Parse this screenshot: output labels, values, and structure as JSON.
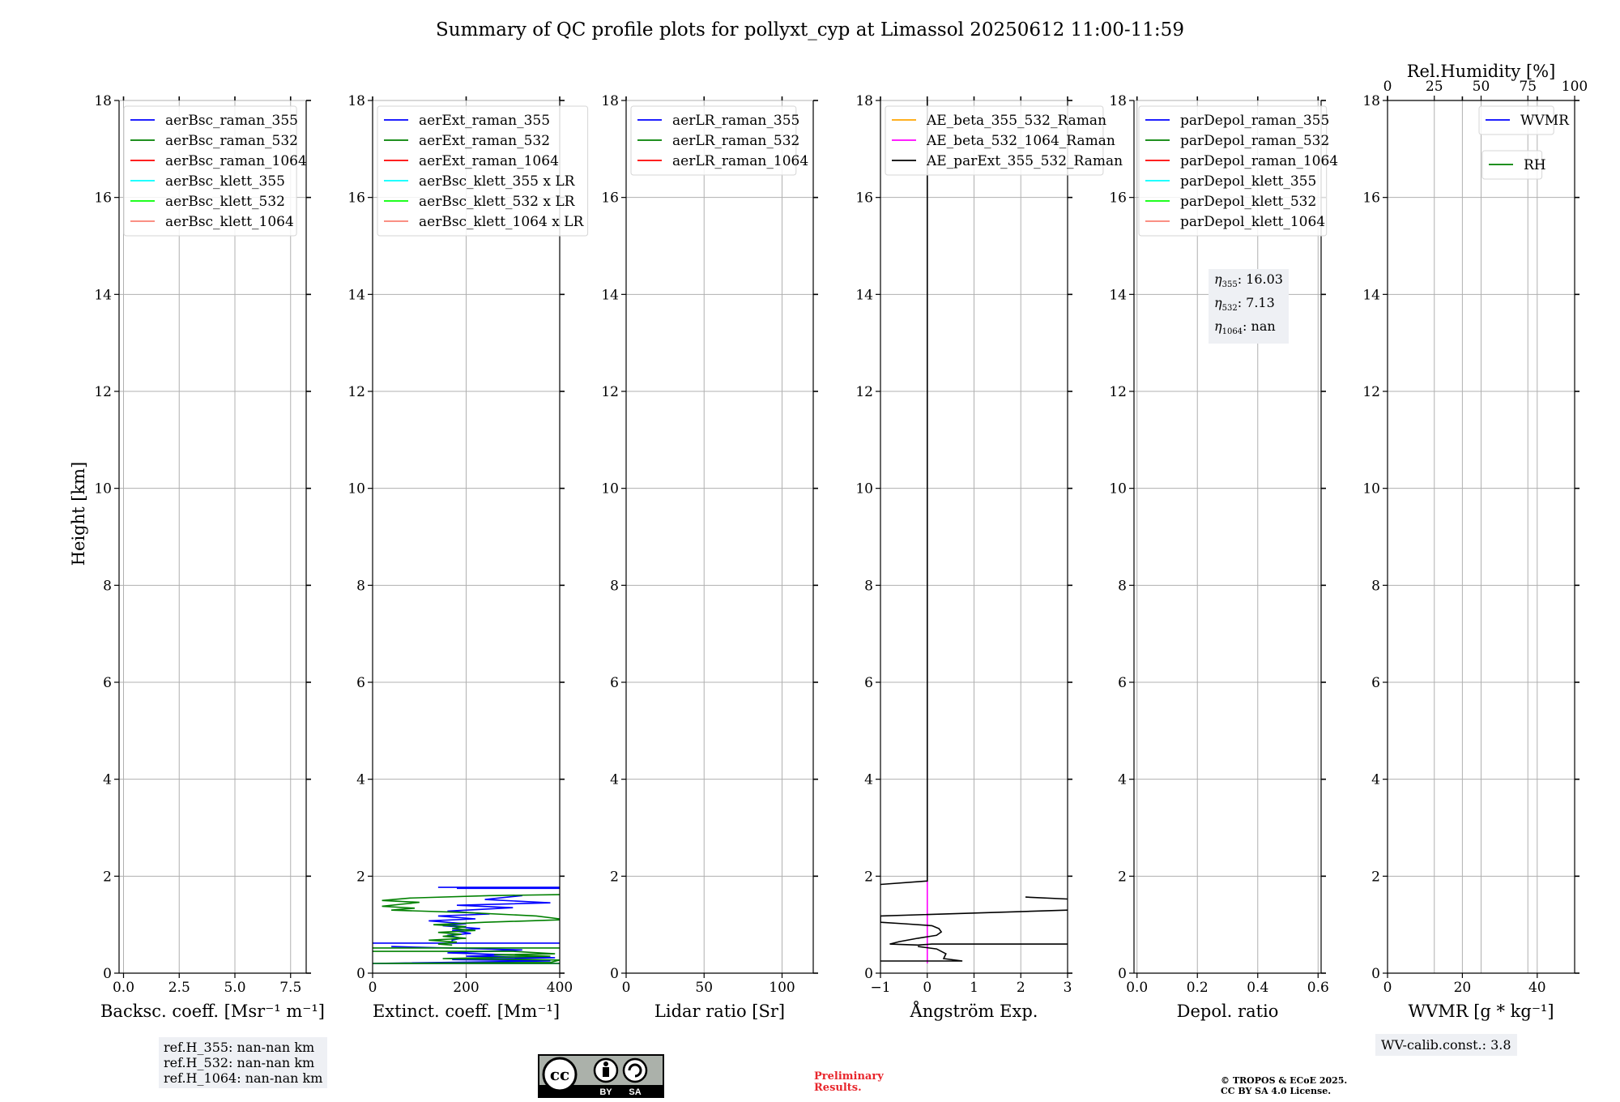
{
  "chart_data": {
    "type": "line",
    "title": "Summary of QC profile plots for pollyxt_cyp at Limassol 20250612 11:00-11:59",
    "ylabel": "Height [km]",
    "ylim": [
      0,
      18
    ],
    "ytick_labels": [
      "0",
      "2",
      "4",
      "6",
      "8",
      "10",
      "12",
      "14",
      "16",
      "18"
    ],
    "grid": true,
    "panels": [
      {
        "id": "bsc",
        "xlabel": "Backsc. coeff. [Msr⁻¹ m⁻¹]",
        "xlim": [
          -0.2,
          8.2
        ],
        "xtick_values": [
          0,
          2.5,
          5,
          7.5
        ],
        "xtick_labels": [
          "0.0",
          "2.5",
          "5.0",
          "7.5"
        ],
        "legend": [
          {
            "label": "aerBsc_raman_355",
            "color": "#0000ff"
          },
          {
            "label": "aerBsc_raman_532",
            "color": "#008000"
          },
          {
            "label": "aerBsc_raman_1064",
            "color": "#ff0000"
          },
          {
            "label": "aerBsc_klett_355",
            "color": "#00ffff"
          },
          {
            "label": "aerBsc_klett_532",
            "color": "#00ff00"
          },
          {
            "label": "aerBsc_klett_1064",
            "color": "#fa8072"
          }
        ],
        "series": []
      },
      {
        "id": "ext",
        "xlabel": "Extinct. coeff. [Mm⁻¹]",
        "xlim": [
          0,
          400
        ],
        "xtick_values": [
          0,
          200,
          400
        ],
        "xtick_labels": [
          "0",
          "200",
          "400"
        ],
        "legend": [
          {
            "label": "aerExt_raman_355",
            "color": "#0000ff"
          },
          {
            "label": "aerExt_raman_532",
            "color": "#008000"
          },
          {
            "label": "aerExt_raman_1064",
            "color": "#ff0000"
          },
          {
            "label": "aerBsc_klett_355 x LR",
            "color": "#00ffff"
          },
          {
            "label": "aerBsc_klett_532 x LR",
            "color": "#00ff00"
          },
          {
            "label": "aerBsc_klett_1064 x LR",
            "color": "#fa8072"
          }
        ],
        "series": [
          {
            "name": "aerExt_raman_355",
            "color": "#0000ff",
            "x": [
              180,
              400,
              null,
              140,
              400,
              null,
              320,
              240,
              380,
              180,
              300,
              160,
              250,
              140,
              220,
              120,
              200,
              150,
              230,
              170,
              210,
              160,
              190,
              170,
              170,
              null,
              0,
              400,
              null,
              40,
              320,
              160,
              290,
              200,
              390,
              170,
              380,
              0,
              400
            ],
            "y": [
              1.75,
              1.75,
              null,
              1.77,
              1.77,
              null,
              1.6,
              1.52,
              1.45,
              1.4,
              1.35,
              1.28,
              1.22,
              1.18,
              1.12,
              1.08,
              1.02,
              0.98,
              0.92,
              0.88,
              0.82,
              0.78,
              0.72,
              0.68,
              0.65,
              null,
              0.62,
              0.62,
              null,
              0.55,
              0.48,
              0.42,
              0.38,
              0.35,
              0.32,
              0.28,
              0.25,
              0.2,
              0.2
            ]
          },
          {
            "name": "aerExt_raman_532",
            "color": "#008000",
            "x": [
              400,
              250,
              80,
              20,
              100,
              60,
              20,
              90,
              40,
              200,
              350,
              400,
              null,
              400,
              240,
              130,
              200,
              170,
              220,
              140,
              190,
              150,
              200,
              120,
              180,
              140,
              170,
              null,
              0,
              400,
              null,
              0,
              200,
              300,
              390,
              260,
              380,
              150,
              400,
              380,
              0,
              400
            ],
            "y": [
              1.62,
              1.6,
              1.55,
              1.5,
              1.46,
              1.42,
              1.38,
              1.34,
              1.3,
              1.25,
              1.18,
              1.12,
              null,
              1.1,
              1.05,
              1.0,
              0.96,
              0.92,
              0.88,
              0.84,
              0.8,
              0.76,
              0.72,
              0.68,
              0.64,
              0.6,
              0.58,
              null,
              0.52,
              0.52,
              null,
              0.45,
              0.45,
              0.45,
              0.4,
              0.38,
              0.35,
              0.3,
              0.27,
              0.22,
              0.2,
              0.2
            ]
          }
        ]
      },
      {
        "id": "lr",
        "xlabel": "Lidar ratio [Sr]",
        "xlim": [
          0,
          120
        ],
        "xtick_values": [
          0,
          50,
          100
        ],
        "xtick_labels": [
          "0",
          "50",
          "100"
        ],
        "legend": [
          {
            "label": "aerLR_raman_355",
            "color": "#0000ff"
          },
          {
            "label": "aerLR_raman_532",
            "color": "#008000"
          },
          {
            "label": "aerLR_raman_1064",
            "color": "#ff0000"
          }
        ],
        "series": []
      },
      {
        "id": "ae",
        "xlabel": "Ångström Exp.",
        "xlim": [
          -1,
          3
        ],
        "xtick_values": [
          -1,
          0,
          1,
          2,
          3
        ],
        "xtick_labels": [
          "−1",
          "0",
          "1",
          "2",
          "3"
        ],
        "legend": [
          {
            "label": "AE_beta_355_532_Raman",
            "color": "#ffa500"
          },
          {
            "label": "AE_beta_532_1064_Raman",
            "color": "#ff00ff"
          },
          {
            "label": "AE_parExt_355_532_Raman",
            "color": "#000000"
          }
        ],
        "series": [
          {
            "name": "AE_beta_532_1064_Raman",
            "color": "#ff00ff",
            "x": [
              0,
              0
            ],
            "y": [
              0.2,
              1.9
            ]
          },
          {
            "name": "AE_parExt_355_532_Raman",
            "color": "#000000",
            "x": [
              0,
              0,
              -1,
              null,
              3,
              2.1,
              null,
              3,
              -1,
              -1,
              -0.5,
              0.1,
              0.25,
              0.3,
              0.2,
              -0.2,
              -0.6,
              -0.8,
              -0.2,
              0.1,
              3,
              null,
              -0.2,
              0.2,
              0.4,
              0.35,
              0.75,
              -1
            ],
            "y": [
              18,
              1.9,
              1.83,
              null,
              1.53,
              1.57,
              null,
              1.3,
              1.18,
              1.05,
              1.02,
              0.98,
              0.92,
              0.85,
              0.78,
              0.72,
              0.65,
              0.6,
              0.58,
              0.6,
              0.6,
              null,
              0.55,
              0.5,
              0.4,
              0.3,
              0.25,
              0.25
            ]
          }
        ]
      },
      {
        "id": "depol",
        "xlabel": "Depol. ratio",
        "xlim": [
          -0.01,
          0.61
        ],
        "xtick_values": [
          0,
          0.2,
          0.4,
          0.6
        ],
        "xtick_labels": [
          "0.0",
          "0.2",
          "0.4",
          "0.6"
        ],
        "legend": [
          {
            "label": "parDepol_raman_355",
            "color": "#0000ff"
          },
          {
            "label": "parDepol_raman_532",
            "color": "#008000"
          },
          {
            "label": "parDepol_raman_1064",
            "color": "#ff0000"
          },
          {
            "label": "parDepol_klett_355",
            "color": "#00ffff"
          },
          {
            "label": "parDepol_klett_532",
            "color": "#00ff00"
          },
          {
            "label": "parDepol_klett_1064",
            "color": "#fa8072"
          }
        ],
        "series": []
      },
      {
        "id": "wv",
        "xlabel": "WVMR [g * kg⁻¹]",
        "xlim": [
          0,
          50
        ],
        "xtick_values": [
          0,
          20,
          40
        ],
        "xtick_labels": [
          "0",
          "20",
          "40"
        ],
        "top_xlabel": "Rel.Humidity [%]",
        "top_xlim": [
          0,
          100
        ],
        "top_xtick_values": [
          0,
          25,
          50,
          75,
          100
        ],
        "top_xtick_labels": [
          "0",
          "25",
          "50",
          "75",
          "100"
        ],
        "legend": [
          {
            "label": "WVMR",
            "color": "#0000ff"
          }
        ],
        "legend2": [
          {
            "label": "RH",
            "color": "#008000"
          }
        ],
        "series": []
      }
    ]
  },
  "annotations": {
    "ref_h": [
      "ref.H_355: nan-nan km",
      "ref.H_532: nan-nan km",
      "ref.H_1064: nan-nan km"
    ],
    "eta": [
      {
        "sym": "η",
        "sub": "355",
        "value": ": 16.03"
      },
      {
        "sym": "η",
        "sub": "532",
        "value": ": 7.13"
      },
      {
        "sym": "η",
        "sub": "1064",
        "value": ": nan"
      }
    ],
    "wv_calib": "WV-calib.const.: 3.8",
    "preliminary_line1": "Preliminary",
    "preliminary_line2": "Results.",
    "copyright_line1": "© TROPOS & ECoE 2025.",
    "copyright_line2": "CC BY SA 4.0 License.",
    "license_by": "BY",
    "license_sa": "SA",
    "license_cc": "cc"
  }
}
